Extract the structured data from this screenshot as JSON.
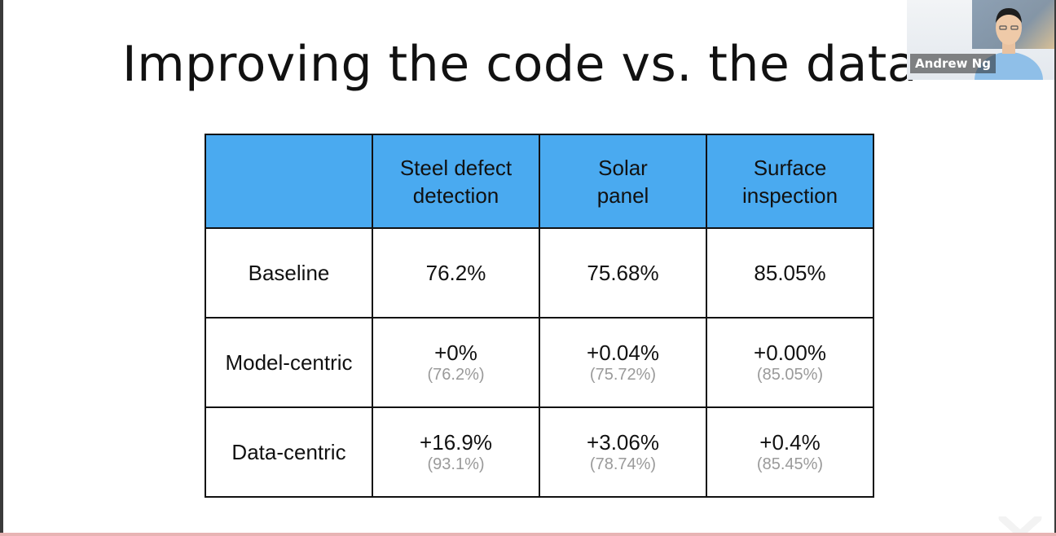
{
  "slide": {
    "title": "Improving the code vs. the data"
  },
  "table": {
    "headers": [
      "",
      "Steel defect detection",
      "Solar panel",
      "Surface inspection"
    ],
    "header_lines": [
      [
        "",
        ""
      ],
      [
        "Steel defect",
        "detection"
      ],
      [
        "Solar",
        "panel"
      ],
      [
        "Surface",
        "inspection"
      ]
    ],
    "rows": [
      {
        "label": "Baseline",
        "cells": [
          {
            "main": "76.2%",
            "sub": ""
          },
          {
            "main": "75.68%",
            "sub": ""
          },
          {
            "main": "85.05%",
            "sub": ""
          }
        ]
      },
      {
        "label": "Model-centric",
        "cells": [
          {
            "main": "+0%",
            "sub": "(76.2%)"
          },
          {
            "main": "+0.04%",
            "sub": "(75.72%)"
          },
          {
            "main": "+0.00%",
            "sub": "(85.05%)"
          }
        ]
      },
      {
        "label": "Data-centric",
        "cells": [
          {
            "main": "+16.9%",
            "sub": "(93.1%)"
          },
          {
            "main": "+3.06%",
            "sub": "(78.74%)"
          },
          {
            "main": "+0.4%",
            "sub": "(85.45%)"
          }
        ]
      }
    ],
    "header_color": "#4aaaf0"
  },
  "video": {
    "participant_name": "Andrew Ng"
  },
  "icons": {
    "corner_mark": "x-mark-icon"
  }
}
